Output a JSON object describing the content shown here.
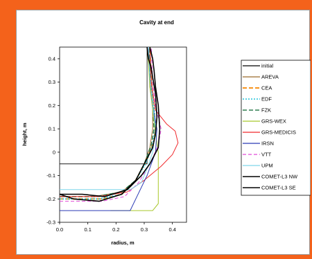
{
  "chart_data": {
    "type": "line",
    "title": "Cavity at end",
    "xlabel": "radius, m",
    "ylabel": "height, m",
    "xlim": [
      0,
      0.45
    ],
    "ylim": [
      -0.3,
      0.45
    ],
    "xticks": [
      "0.0",
      "0.1",
      "0.2",
      "0.3",
      "0.4"
    ],
    "xtick_values": [
      0,
      0.1,
      0.2,
      0.3,
      0.4
    ],
    "yticks": [
      "0.4",
      "0.3",
      "0.2",
      "0.1",
      "0",
      "-0.1",
      "-0.2",
      "-0.3"
    ],
    "ytick_values": [
      0.4,
      0.3,
      0.2,
      0.1,
      0,
      -0.1,
      -0.2,
      -0.3
    ],
    "legend_position": "right",
    "series": [
      {
        "name": "initial",
        "color": "#000000",
        "width": 0.8,
        "dash": "",
        "x": [
          0,
          0.31,
          0.31
        ],
        "y": [
          -0.05,
          -0.05,
          0.45
        ]
      },
      {
        "name": "AREVA",
        "color": "#9b6a2a",
        "width": 1,
        "dash": "",
        "x": [
          0,
          0.12,
          0.22,
          0.27,
          0.3,
          0.32,
          0.33,
          0.33,
          0.32,
          0.32
        ],
        "y": [
          -0.19,
          -0.19,
          -0.17,
          -0.12,
          -0.05,
          0.02,
          0.1,
          0.2,
          0.3,
          0.45
        ]
      },
      {
        "name": "CEA",
        "color": "#f7941d",
        "width": 2,
        "dash": "6,3",
        "x": [
          0,
          0.15,
          0.22,
          0.27,
          0.31,
          0.335,
          0.34,
          0.33,
          0.325,
          0.32
        ],
        "y": [
          -0.2,
          -0.2,
          -0.18,
          -0.12,
          -0.03,
          0.05,
          0.12,
          0.22,
          0.32,
          0.45
        ]
      },
      {
        "name": "EDF",
        "color": "#1fc3d8",
        "width": 1.6,
        "dash": "2,2",
        "x": [
          0,
          0.14,
          0.22,
          0.27,
          0.305,
          0.33,
          0.34,
          0.335,
          0.325,
          0.32
        ],
        "y": [
          -0.2,
          -0.2,
          -0.18,
          -0.12,
          -0.05,
          0.03,
          0.1,
          0.2,
          0.3,
          0.45
        ]
      },
      {
        "name": "FZK",
        "color": "#2e7d4f",
        "width": 1.6,
        "dash": "6,3",
        "x": [
          0,
          0.13,
          0.22,
          0.27,
          0.3,
          0.325,
          0.335,
          0.33,
          0.322,
          0.318
        ],
        "y": [
          -0.19,
          -0.19,
          -0.17,
          -0.12,
          -0.05,
          0.03,
          0.1,
          0.2,
          0.3,
          0.45
        ]
      },
      {
        "name": "GRS-WEX",
        "color": "#a8c62a",
        "width": 1,
        "dash": "",
        "x": [
          0.18,
          0.33,
          0.35,
          0.35,
          0.35,
          0.34,
          0.33,
          0.32,
          0.315,
          0.31
        ],
        "y": [
          -0.25,
          -0.25,
          -0.22,
          -0.1,
          0,
          0.08,
          0.18,
          0.28,
          0.38,
          0.45
        ]
      },
      {
        "name": "GRS-MEDICIS",
        "color": "#f0282b",
        "width": 1,
        "dash": "",
        "x": [
          0,
          0.14,
          0.24,
          0.3,
          0.36,
          0.4,
          0.42,
          0.41,
          0.38,
          0.34,
          0.325,
          0.32
        ],
        "y": [
          -0.19,
          -0.19,
          -0.17,
          -0.12,
          -0.06,
          -0.01,
          0.04,
          0.09,
          0.12,
          0.18,
          0.3,
          0.45
        ]
      },
      {
        "name": "IRSN",
        "color": "#2b3bb5",
        "width": 1,
        "dash": "",
        "x": [
          0,
          0.25,
          0.27,
          0.31,
          0.34,
          0.345,
          0.33,
          0.32,
          0.315
        ],
        "y": [
          -0.25,
          -0.25,
          -0.2,
          -0.1,
          0,
          0.1,
          0.2,
          0.32,
          0.45
        ]
      },
      {
        "name": "VTT",
        "color": "#e04ad8",
        "width": 1,
        "dash": "5,3",
        "x": [
          0,
          0.15,
          0.23,
          0.28,
          0.32,
          0.35,
          0.36,
          0.34,
          0.33,
          0.325
        ],
        "y": [
          -0.21,
          -0.21,
          -0.19,
          -0.13,
          -0.05,
          0.03,
          0.1,
          0.2,
          0.3,
          0.45
        ]
      },
      {
        "name": "UPM",
        "color": "#7fd6ea",
        "width": 1,
        "dash": "",
        "x": [
          0,
          0.25,
          0.29,
          0.31,
          0.33,
          0.34,
          0.33,
          0.32,
          0.315
        ],
        "y": [
          -0.16,
          -0.16,
          -0.13,
          -0.07,
          0,
          0.1,
          0.2,
          0.32,
          0.45
        ]
      },
      {
        "name": "COMET-L3 NW",
        "color": "#000000",
        "width": 1.6,
        "dash": "",
        "x": [
          0,
          0.05,
          0.14,
          0.22,
          0.27,
          0.3,
          0.33,
          0.34,
          0.345,
          0.34,
          0.33,
          0.325,
          0.315,
          0.31
        ],
        "y": [
          -0.18,
          -0.2,
          -0.21,
          -0.18,
          -0.12,
          -0.05,
          0.02,
          0.08,
          0.15,
          0.25,
          0.32,
          0.36,
          0.4,
          0.45
        ]
      },
      {
        "name": "COMET-L3 SE",
        "color": "#000000",
        "width": 1.6,
        "dash": "",
        "x": [
          0,
          0.08,
          0.16,
          0.24,
          0.29,
          0.32,
          0.35,
          0.355,
          0.35,
          0.34,
          0.335,
          0.33,
          0.32
        ],
        "y": [
          -0.18,
          -0.18,
          -0.19,
          -0.16,
          -0.1,
          -0.05,
          0.02,
          0.1,
          0.2,
          0.28,
          0.35,
          0.4,
          0.45
        ]
      }
    ]
  }
}
